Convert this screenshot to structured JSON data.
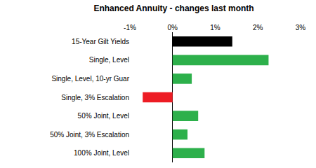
{
  "chart_data": {
    "type": "bar",
    "orientation": "horizontal",
    "title": "Enhanced Annuity - changes last month",
    "categories": [
      "15-Year Gilt Yields",
      "Single, Level",
      "Single, Level, 10-yr Guar",
      "Single, 3% Escalation",
      "50% Joint, Level",
      "50% Joint, 3% Escalation",
      "100% Joint, Level"
    ],
    "values": [
      1.4,
      2.25,
      0.45,
      -0.7,
      0.6,
      0.35,
      0.75
    ],
    "colors": [
      "#000000",
      "#2db04b",
      "#2db04b",
      "#ed1c24",
      "#2db04b",
      "#2db04b",
      "#2db04b"
    ],
    "xlim": [
      -1,
      3
    ],
    "xticks": [
      {
        "value": -1,
        "label": "-1%"
      },
      {
        "value": 0,
        "label": "0%"
      },
      {
        "value": 1,
        "label": "1%"
      },
      {
        "value": 2,
        "label": "2%"
      },
      {
        "value": 3,
        "label": "3%"
      }
    ],
    "grid": false
  }
}
